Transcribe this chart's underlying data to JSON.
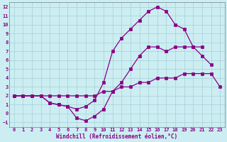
{
  "xlabel": "Windchill (Refroidissement éolien,°C)",
  "bg_color": "#cceef2",
  "line_color": "#880088",
  "grid_color": "#aad4da",
  "xlim": [
    -0.5,
    23.5
  ],
  "ylim": [
    -1.5,
    12.5
  ],
  "xticks": [
    0,
    1,
    2,
    3,
    4,
    5,
    6,
    7,
    8,
    9,
    10,
    11,
    12,
    13,
    14,
    15,
    16,
    17,
    18,
    19,
    20,
    21,
    22,
    23
  ],
  "yticks": [
    -1,
    0,
    1,
    2,
    3,
    4,
    5,
    6,
    7,
    8,
    9,
    10,
    11,
    12
  ],
  "line1_x": [
    0,
    1,
    2,
    3,
    4,
    5,
    6,
    7,
    8,
    9,
    10,
    11,
    12,
    13,
    14,
    15,
    16,
    17,
    18,
    19,
    20,
    21,
    22,
    23
  ],
  "line1_y": [
    2,
    2,
    2,
    2,
    1.2,
    1.0,
    0.8,
    0.5,
    0.8,
    1.5,
    3.5,
    7.0,
    8.5,
    9.5,
    10.5,
    11.5,
    12.0,
    11.5,
    10.0,
    9.5,
    7.5,
    7.5,
    null,
    null
  ],
  "line2_x": [
    0,
    1,
    2,
    3,
    4,
    5,
    6,
    7,
    8,
    9,
    10,
    11,
    12,
    13,
    14,
    15,
    16,
    17,
    18,
    19,
    20,
    21,
    22,
    23
  ],
  "line2_y": [
    2,
    2,
    2,
    2,
    1.2,
    1.0,
    0.8,
    -0.5,
    -0.8,
    -0.3,
    0.5,
    2.5,
    3.5,
    5.0,
    6.5,
    7.5,
    7.5,
    7.0,
    7.5,
    7.5,
    7.5,
    6.5,
    5.5,
    null
  ],
  "line3_x": [
    0,
    1,
    2,
    3,
    4,
    5,
    6,
    7,
    8,
    9,
    10,
    11,
    12,
    13,
    14,
    15,
    16,
    17,
    18,
    19,
    20,
    21,
    22,
    23
  ],
  "line3_y": [
    2,
    2,
    2,
    2,
    2,
    2,
    2,
    2,
    2,
    2,
    2.5,
    2.5,
    3.0,
    3.0,
    3.5,
    3.5,
    4.0,
    4.0,
    4.0,
    4.5,
    4.5,
    4.5,
    4.5,
    3.0
  ]
}
